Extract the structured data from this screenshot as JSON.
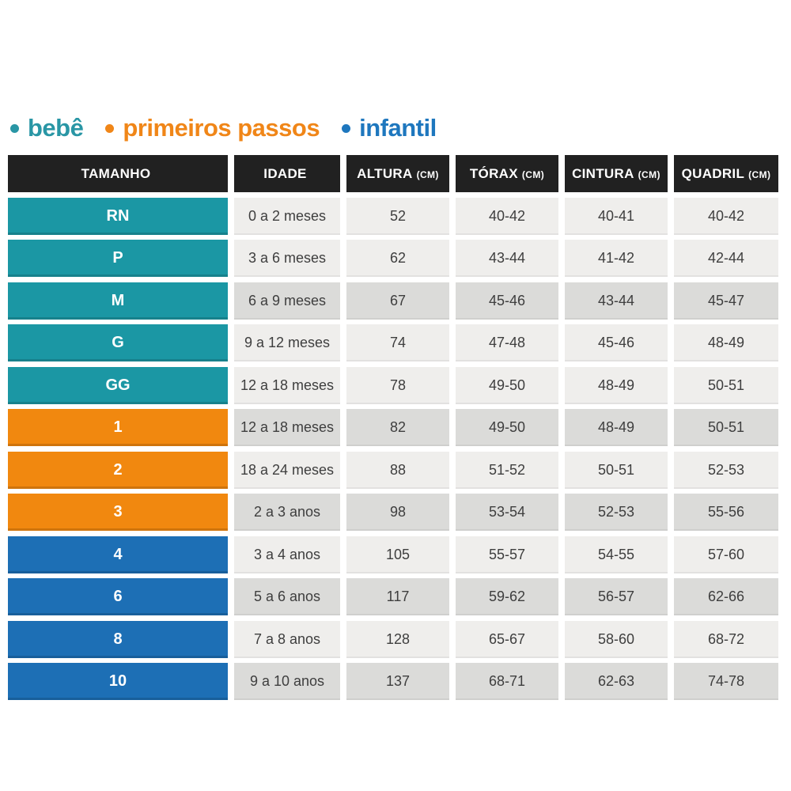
{
  "legend": {
    "items": [
      {
        "label": "bebê",
        "color": "#2996A5",
        "group": "bebe"
      },
      {
        "label": "primeiros passos",
        "color": "#F08618",
        "group": "primeiros_passos"
      },
      {
        "label": "infantil",
        "color": "#1E77BE",
        "group": "infantil"
      }
    ]
  },
  "chart_data": {
    "type": "table",
    "columns": [
      {
        "label": "TAMANHO",
        "unit": ""
      },
      {
        "label": "IDADE",
        "unit": ""
      },
      {
        "label": "ALTURA",
        "unit": "(CM)"
      },
      {
        "label": "TÓRAX",
        "unit": "(CM)"
      },
      {
        "label": "CINTURA",
        "unit": "(CM)"
      },
      {
        "label": "QUADRIL",
        "unit": "(CM)"
      }
    ],
    "rows": [
      {
        "tamanho": "RN",
        "group": "bebe",
        "idade": "0 a 2 meses",
        "altura": "52",
        "torax": "40-42",
        "cintura": "40-41",
        "quadril": "40-42",
        "shade": "light"
      },
      {
        "tamanho": "P",
        "group": "bebe",
        "idade": "3 a 6 meses",
        "altura": "62",
        "torax": "43-44",
        "cintura": "41-42",
        "quadril": "42-44",
        "shade": "light"
      },
      {
        "tamanho": "M",
        "group": "bebe",
        "idade": "6 a 9 meses",
        "altura": "67",
        "torax": "45-46",
        "cintura": "43-44",
        "quadril": "45-47",
        "shade": "dark"
      },
      {
        "tamanho": "G",
        "group": "bebe",
        "idade": "9 a 12 meses",
        "altura": "74",
        "torax": "47-48",
        "cintura": "45-46",
        "quadril": "48-49",
        "shade": "light"
      },
      {
        "tamanho": "GG",
        "group": "bebe",
        "idade": "12 a 18 meses",
        "altura": "78",
        "torax": "49-50",
        "cintura": "48-49",
        "quadril": "50-51",
        "shade": "light"
      },
      {
        "tamanho": "1",
        "group": "primeiros_passos",
        "idade": "12 a 18 meses",
        "altura": "82",
        "torax": "49-50",
        "cintura": "48-49",
        "quadril": "50-51",
        "shade": "dark"
      },
      {
        "tamanho": "2",
        "group": "primeiros_passos",
        "idade": "18 a 24 meses",
        "altura": "88",
        "torax": "51-52",
        "cintura": "50-51",
        "quadril": "52-53",
        "shade": "light"
      },
      {
        "tamanho": "3",
        "group": "primeiros_passos",
        "idade": "2 a 3 anos",
        "altura": "98",
        "torax": "53-54",
        "cintura": "52-53",
        "quadril": "55-56",
        "shade": "dark"
      },
      {
        "tamanho": "4",
        "group": "infantil",
        "idade": "3 a 4 anos",
        "altura": "105",
        "torax": "55-57",
        "cintura": "54-55",
        "quadril": "57-60",
        "shade": "light"
      },
      {
        "tamanho": "6",
        "group": "infantil",
        "idade": "5 a 6 anos",
        "altura": "117",
        "torax": "59-62",
        "cintura": "56-57",
        "quadril": "62-66",
        "shade": "dark"
      },
      {
        "tamanho": "8",
        "group": "infantil",
        "idade": "7 a 8 anos",
        "altura": "128",
        "torax": "65-67",
        "cintura": "58-60",
        "quadril": "68-72",
        "shade": "light"
      },
      {
        "tamanho": "10",
        "group": "infantil",
        "idade": "9 a 10 anos",
        "altura": "137",
        "torax": "68-71",
        "cintura": "62-63",
        "quadril": "74-78",
        "shade": "dark"
      }
    ]
  },
  "colors": {
    "groups": {
      "bebe": "#1B97A4",
      "primeiros_passos": "#F1880F",
      "infantil": "#1D6FB5"
    },
    "header_bg": "#212121",
    "header_text": "#FFFFFF",
    "row_light": "#EFEEEC",
    "row_dark": "#DBDBD9",
    "cell_text": "#3E3E3E",
    "page_bg": "#FFFFFF"
  }
}
